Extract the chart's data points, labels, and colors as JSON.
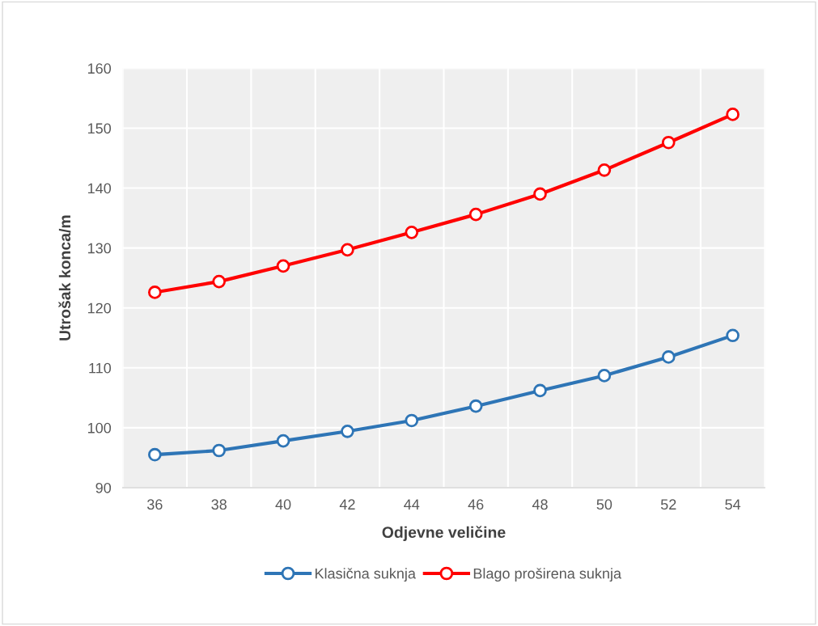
{
  "chart_data": {
    "type": "line",
    "xlabel": "Odjevne veličine",
    "ylabel": "Utrošak konca/m",
    "categories": [
      "36",
      "38",
      "40",
      "42",
      "44",
      "46",
      "48",
      "50",
      "52",
      "54"
    ],
    "series": [
      {
        "name": "Klasična suknja",
        "color": "#2e75b6",
        "values": [
          95.5,
          96.2,
          97.8,
          99.4,
          101.2,
          103.6,
          106.2,
          108.7,
          111.8,
          115.4
        ]
      },
      {
        "name": "Blago proširena suknja",
        "color": "#ff0000",
        "values": [
          122.6,
          124.4,
          127.0,
          129.7,
          132.6,
          135.6,
          139.0,
          143.0,
          147.6,
          152.3
        ]
      }
    ],
    "ylim": [
      90,
      160
    ],
    "yticks": [
      90,
      100,
      110,
      120,
      130,
      140,
      150,
      160
    ],
    "grid": true,
    "legend": "bottom",
    "marker": "circle",
    "line_style": "solid"
  }
}
